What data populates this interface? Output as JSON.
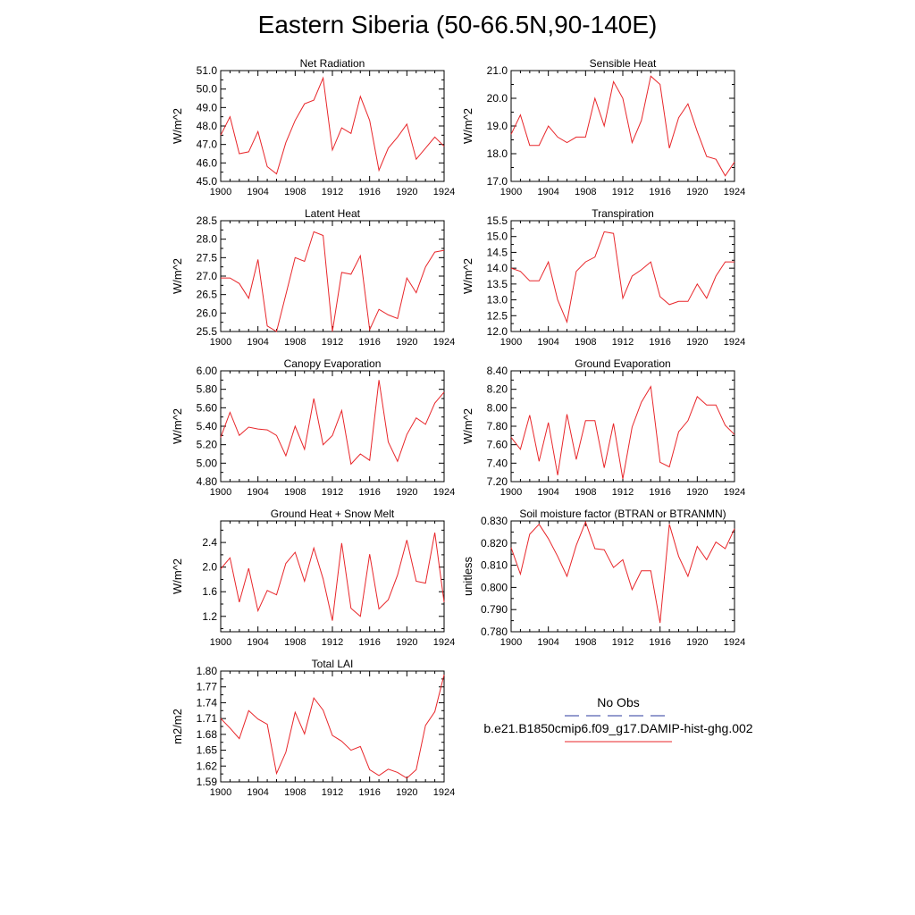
{
  "page": {
    "title": "Eastern Siberia (50-66.5N,90-140E)"
  },
  "legend": {
    "items": [
      {
        "label": "No Obs",
        "color": "#2b3a9c",
        "dash": true
      },
      {
        "label": "b.e21.B1850cmip6.f09_g17.DAMIP-hist-ghg.002",
        "color": "#e8262a",
        "dash": false
      }
    ]
  },
  "colors": {
    "series": "#e8262a",
    "axis": "#000000"
  },
  "chart_data": [
    {
      "type": "line",
      "title": "Net Radiation",
      "ylabel": "W/m^2",
      "xlim": [
        1900,
        1924
      ],
      "ylim": [
        45.0,
        51.0
      ],
      "xticks": [
        1900,
        1904,
        1908,
        1912,
        1916,
        1920,
        1924
      ],
      "xtick_labels": [
        "1900",
        "1904",
        "1908",
        "1912",
        "1916",
        "1920",
        "1924"
      ],
      "yticks": [
        45.0,
        46.0,
        47.0,
        48.0,
        49.0,
        50.0,
        51.0
      ],
      "ytick_labels": [
        "45.0",
        "46.0",
        "47.0",
        "48.0",
        "49.0",
        "50.0",
        "51.0"
      ],
      "x": [
        1900,
        1901,
        1902,
        1903,
        1904,
        1905,
        1906,
        1907,
        1908,
        1909,
        1910,
        1911,
        1912,
        1913,
        1914,
        1915,
        1916,
        1917,
        1918,
        1919,
        1920,
        1921,
        1922,
        1923,
        1924
      ],
      "y": [
        47.5,
        48.5,
        46.5,
        46.6,
        47.7,
        45.8,
        45.4,
        47.1,
        48.3,
        49.2,
        49.4,
        50.6,
        46.7,
        47.9,
        47.6,
        49.6,
        48.3,
        45.6,
        46.8,
        47.4,
        48.1,
        46.2,
        46.8,
        47.4,
        46.9
      ]
    },
    {
      "type": "line",
      "title": "Sensible Heat",
      "ylabel": "W/m^2",
      "xlim": [
        1900,
        1924
      ],
      "ylim": [
        17.0,
        21.0
      ],
      "xticks": [
        1900,
        1904,
        1908,
        1912,
        1916,
        1920,
        1924
      ],
      "xtick_labels": [
        "1900",
        "1904",
        "1908",
        "1912",
        "1916",
        "1920",
        "1924"
      ],
      "yticks": [
        17.0,
        18.0,
        19.0,
        20.0,
        21.0
      ],
      "ytick_labels": [
        "17.0",
        "18.0",
        "19.0",
        "20.0",
        "21.0"
      ],
      "x": [
        1900,
        1901,
        1902,
        1903,
        1904,
        1905,
        1906,
        1907,
        1908,
        1909,
        1910,
        1911,
        1912,
        1913,
        1914,
        1915,
        1916,
        1917,
        1918,
        1919,
        1920,
        1921,
        1922,
        1923,
        1924
      ],
      "y": [
        18.7,
        19.4,
        18.3,
        18.3,
        19.0,
        18.6,
        18.4,
        18.6,
        18.6,
        20.0,
        19.0,
        20.6,
        20.0,
        18.4,
        19.2,
        20.8,
        20.5,
        18.2,
        19.3,
        19.8,
        18.8,
        17.9,
        17.8,
        17.2,
        17.7
      ]
    },
    {
      "type": "line",
      "title": "Latent Heat",
      "ylabel": "W/m^2",
      "xlim": [
        1900,
        1924
      ],
      "ylim": [
        25.5,
        28.5
      ],
      "xticks": [
        1900,
        1904,
        1908,
        1912,
        1916,
        1920,
        1924
      ],
      "xtick_labels": [
        "1900",
        "1904",
        "1908",
        "1912",
        "1916",
        "1920",
        "1924"
      ],
      "yticks": [
        25.5,
        26.0,
        26.5,
        27.0,
        27.5,
        28.0,
        28.5
      ],
      "ytick_labels": [
        "25.5",
        "26.0",
        "26.5",
        "27.0",
        "27.5",
        "28.0",
        "28.5"
      ],
      "x": [
        1900,
        1901,
        1902,
        1903,
        1904,
        1905,
        1906,
        1907,
        1908,
        1909,
        1910,
        1911,
        1912,
        1913,
        1914,
        1915,
        1916,
        1917,
        1918,
        1919,
        1920,
        1921,
        1922,
        1923,
        1924
      ],
      "y": [
        26.95,
        26.95,
        26.8,
        26.4,
        27.45,
        25.65,
        25.5,
        26.5,
        27.5,
        27.4,
        28.2,
        28.1,
        25.5,
        27.1,
        27.05,
        27.55,
        25.55,
        26.1,
        25.95,
        25.85,
        26.95,
        26.55,
        27.25,
        27.65,
        27.7
      ]
    },
    {
      "type": "line",
      "title": "Transpiration",
      "ylabel": "W/m^2",
      "xlim": [
        1900,
        1924
      ],
      "ylim": [
        12.0,
        15.5
      ],
      "xticks": [
        1900,
        1904,
        1908,
        1912,
        1916,
        1920,
        1924
      ],
      "xtick_labels": [
        "1900",
        "1904",
        "1908",
        "1912",
        "1916",
        "1920",
        "1924"
      ],
      "yticks": [
        12.0,
        12.5,
        13.0,
        13.5,
        14.0,
        14.5,
        15.0,
        15.5
      ],
      "ytick_labels": [
        "12.0",
        "12.5",
        "13.0",
        "13.5",
        "14.0",
        "14.5",
        "15.0",
        "15.5"
      ],
      "x": [
        1900,
        1901,
        1902,
        1903,
        1904,
        1905,
        1906,
        1907,
        1908,
        1909,
        1910,
        1911,
        1912,
        1913,
        1914,
        1915,
        1916,
        1917,
        1918,
        1919,
        1920,
        1921,
        1922,
        1923,
        1924
      ],
      "y": [
        14.0,
        13.9,
        13.6,
        13.6,
        14.2,
        13.0,
        12.3,
        13.9,
        14.2,
        14.35,
        15.15,
        15.1,
        13.05,
        13.75,
        13.95,
        14.2,
        13.1,
        12.85,
        12.95,
        12.95,
        13.5,
        13.05,
        13.75,
        14.2,
        14.2
      ]
    },
    {
      "type": "line",
      "title": "Canopy Evaporation",
      "ylabel": "W/m^2",
      "xlim": [
        1900,
        1924
      ],
      "ylim": [
        4.8,
        6.0
      ],
      "xticks": [
        1900,
        1904,
        1908,
        1912,
        1916,
        1920,
        1924
      ],
      "xtick_labels": [
        "1900",
        "1904",
        "1908",
        "1912",
        "1916",
        "1920",
        "1924"
      ],
      "yticks": [
        4.8,
        5.0,
        5.2,
        5.4,
        5.6,
        5.8,
        6.0
      ],
      "ytick_labels": [
        "4.80",
        "5.00",
        "5.20",
        "5.40",
        "5.60",
        "5.80",
        "6.00"
      ],
      "x": [
        1900,
        1901,
        1902,
        1903,
        1904,
        1905,
        1906,
        1907,
        1908,
        1909,
        1910,
        1911,
        1912,
        1913,
        1914,
        1915,
        1916,
        1917,
        1918,
        1919,
        1920,
        1921,
        1922,
        1923,
        1924
      ],
      "y": [
        5.28,
        5.55,
        5.3,
        5.39,
        5.37,
        5.36,
        5.3,
        5.08,
        5.4,
        5.15,
        5.7,
        5.2,
        5.3,
        5.57,
        4.99,
        5.1,
        5.03,
        5.9,
        5.23,
        5.02,
        5.31,
        5.49,
        5.42,
        5.65,
        5.77
      ]
    },
    {
      "type": "line",
      "title": "Ground Evaporation",
      "ylabel": "W/m^2",
      "xlim": [
        1900,
        1924
      ],
      "ylim": [
        7.2,
        8.4
      ],
      "xticks": [
        1900,
        1904,
        1908,
        1912,
        1916,
        1920,
        1924
      ],
      "xtick_labels": [
        "1900",
        "1904",
        "1908",
        "1912",
        "1916",
        "1920",
        "1924"
      ],
      "yticks": [
        7.2,
        7.4,
        7.6,
        7.8,
        8.0,
        8.2,
        8.4
      ],
      "ytick_labels": [
        "7.20",
        "7.40",
        "7.60",
        "7.80",
        "8.00",
        "8.20",
        "8.40"
      ],
      "x": [
        1900,
        1901,
        1902,
        1903,
        1904,
        1905,
        1906,
        1907,
        1908,
        1909,
        1910,
        1911,
        1912,
        1913,
        1914,
        1915,
        1916,
        1917,
        1918,
        1919,
        1920,
        1921,
        1922,
        1923,
        1924
      ],
      "y": [
        7.68,
        7.55,
        7.92,
        7.42,
        7.84,
        7.27,
        7.93,
        7.44,
        7.86,
        7.86,
        7.35,
        7.83,
        7.23,
        7.79,
        8.06,
        8.23,
        7.41,
        7.36,
        7.74,
        7.86,
        8.12,
        8.03,
        8.03,
        7.81,
        7.71
      ]
    },
    {
      "type": "line",
      "title": "Ground Heat + Snow Melt",
      "ylabel": "W/m^2",
      "xlim": [
        1900,
        1924
      ],
      "ylim": [
        0.95,
        2.75
      ],
      "xticks": [
        1900,
        1904,
        1908,
        1912,
        1916,
        1920,
        1924
      ],
      "xtick_labels": [
        "1900",
        "1904",
        "1908",
        "1912",
        "1916",
        "1920",
        "1924"
      ],
      "yticks": [
        1.2,
        1.6,
        2.0,
        2.4
      ],
      "ytick_labels": [
        "1.2",
        "1.6",
        "2.0",
        "2.4"
      ],
      "x": [
        1900,
        1901,
        1902,
        1903,
        1904,
        1905,
        1906,
        1907,
        1908,
        1909,
        1910,
        1911,
        1912,
        1913,
        1914,
        1915,
        1916,
        1917,
        1918,
        1919,
        1920,
        1921,
        1922,
        1923,
        1924
      ],
      "y": [
        1.97,
        2.15,
        1.43,
        1.98,
        1.29,
        1.62,
        1.55,
        2.06,
        2.24,
        1.77,
        2.31,
        1.81,
        1.13,
        2.39,
        1.33,
        1.2,
        2.21,
        1.32,
        1.47,
        1.87,
        2.44,
        1.77,
        1.74,
        2.56,
        1.43
      ]
    },
    {
      "type": "line",
      "title": "Soil moisture factor (BTRAN or BTRANMN)",
      "ylabel": "unitless",
      "xlim": [
        1900,
        1924
      ],
      "ylim": [
        0.78,
        0.83
      ],
      "xticks": [
        1900,
        1904,
        1908,
        1912,
        1916,
        1920,
        1924
      ],
      "xtick_labels": [
        "1900",
        "1904",
        "1908",
        "1912",
        "1916",
        "1920",
        "1924"
      ],
      "yticks": [
        0.78,
        0.79,
        0.8,
        0.81,
        0.82,
        0.83
      ],
      "ytick_labels": [
        "0.780",
        "0.790",
        "0.800",
        "0.810",
        "0.820",
        "0.830"
      ],
      "x": [
        1900,
        1901,
        1902,
        1903,
        1904,
        1905,
        1906,
        1907,
        1908,
        1909,
        1910,
        1911,
        1912,
        1913,
        1914,
        1915,
        1916,
        1917,
        1918,
        1919,
        1920,
        1921,
        1922,
        1923,
        1924
      ],
      "y": [
        0.818,
        0.806,
        0.824,
        0.8285,
        0.822,
        0.814,
        0.805,
        0.819,
        0.8295,
        0.8175,
        0.817,
        0.809,
        0.8125,
        0.799,
        0.8075,
        0.8075,
        0.784,
        0.8285,
        0.814,
        0.805,
        0.8185,
        0.8125,
        0.8205,
        0.8175,
        0.8265
      ]
    },
    {
      "type": "line",
      "title": "Total LAI",
      "ylabel": "m2/m2",
      "xlim": [
        1900,
        1924
      ],
      "ylim": [
        1.59,
        1.8
      ],
      "xticks": [
        1900,
        1904,
        1908,
        1912,
        1916,
        1920,
        1924
      ],
      "xtick_labels": [
        "1900",
        "1904",
        "1908",
        "1912",
        "1916",
        "1920",
        "1924"
      ],
      "yticks": [
        1.59,
        1.62,
        1.65,
        1.68,
        1.71,
        1.74,
        1.77,
        1.8
      ],
      "ytick_labels": [
        "1.59",
        "1.62",
        "1.65",
        "1.68",
        "1.71",
        "1.74",
        "1.77",
        "1.80"
      ],
      "x": [
        1900,
        1901,
        1902,
        1903,
        1904,
        1905,
        1906,
        1907,
        1908,
        1909,
        1910,
        1911,
        1912,
        1913,
        1914,
        1915,
        1916,
        1917,
        1918,
        1919,
        1920,
        1921,
        1922,
        1923,
        1924
      ],
      "y": [
        1.71,
        1.692,
        1.672,
        1.725,
        1.709,
        1.699,
        1.606,
        1.646,
        1.722,
        1.681,
        1.749,
        1.726,
        1.678,
        1.667,
        1.65,
        1.657,
        1.613,
        1.602,
        1.614,
        1.608,
        1.597,
        1.613,
        1.697,
        1.723,
        1.793
      ]
    }
  ]
}
